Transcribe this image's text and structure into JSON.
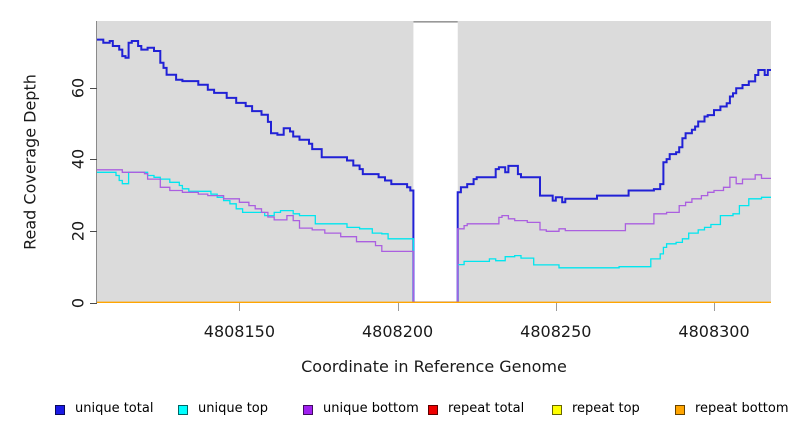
{
  "y_axis": {
    "label": "Read Coverage Depth",
    "ticks": [
      0,
      20,
      40,
      60
    ]
  },
  "x_axis": {
    "label": "Coordinate in Reference Genome",
    "ticks": [
      4808150,
      4808200,
      4808250,
      4808300
    ]
  },
  "legend": {
    "items": [
      {
        "label": "unique total",
        "color": "#1a1ae6"
      },
      {
        "label": "unique top",
        "color": "#00ffff"
      },
      {
        "label": "unique bottom",
        "color": "#a020f0"
      },
      {
        "label": "repeat total",
        "color": "#ee0000"
      },
      {
        "label": "repeat top",
        "color": "#ffff00"
      },
      {
        "label": "repeat bottom",
        "color": "#ffa500"
      }
    ]
  },
  "chart_data": {
    "type": "line",
    "subtype": "step-coverage",
    "xlabel": "Coordinate in Reference Genome",
    "ylabel": "Read Coverage Depth",
    "xlim": [
      4808105,
      4808318
    ],
    "ylim": [
      0,
      78.7
    ],
    "x_ticks": [
      4808150,
      4808200,
      4808250,
      4808300
    ],
    "y_ticks": [
      0,
      20,
      40,
      60
    ],
    "panel_background": "#dbdbdb",
    "gap": {
      "x_start": 4808205,
      "x_end": 4808219,
      "fill": "#ffffff",
      "top_border": "#999999"
    },
    "legend_position": "bottom",
    "grid": false,
    "series": [
      {
        "name": "unique total",
        "color": "#2121d6",
        "line_width": 2.0,
        "points": [
          [
            4808105,
            73.5
          ],
          [
            4808107,
            72.6
          ],
          [
            4808109,
            73.1
          ],
          [
            4808110,
            71.7
          ],
          [
            4808112,
            70.7
          ],
          [
            4808113,
            68.9
          ],
          [
            4808114,
            68.4
          ],
          [
            4808115,
            72.6
          ],
          [
            4808116,
            73.1
          ],
          [
            4808118,
            71.7
          ],
          [
            4808119,
            70.7
          ],
          [
            4808121,
            71.2
          ],
          [
            4808123,
            70.3
          ],
          [
            4808125,
            67.0
          ],
          [
            4808126,
            65.6
          ],
          [
            4808127,
            63.7
          ],
          [
            4808130,
            62.3
          ],
          [
            4808132,
            61.9
          ],
          [
            4808137,
            60.9
          ],
          [
            4808140,
            59.5
          ],
          [
            4808142,
            58.6
          ],
          [
            4808146,
            57.2
          ],
          [
            4808149,
            55.8
          ],
          [
            4808152,
            54.9
          ],
          [
            4808154,
            53.5
          ],
          [
            4808157,
            52.5
          ],
          [
            4808159,
            50.5
          ],
          [
            4808160,
            47.3
          ],
          [
            4808162,
            46.9
          ],
          [
            4808164,
            48.7
          ],
          [
            4808166,
            47.8
          ],
          [
            4808167,
            46.4
          ],
          [
            4808169,
            45.5
          ],
          [
            4808172,
            44.4
          ],
          [
            4808173,
            42.9
          ],
          [
            4808176,
            40.6
          ],
          [
            4808184,
            39.7
          ],
          [
            4808186,
            38.3
          ],
          [
            4808188,
            37.3
          ],
          [
            4808189,
            35.9
          ],
          [
            4808194,
            35.0
          ],
          [
            4808196,
            34.1
          ],
          [
            4808198,
            33.1
          ],
          [
            4808203,
            32.2
          ],
          [
            4808204,
            31.3
          ],
          [
            4808205,
            0
          ],
          [
            4808219,
            30.8
          ],
          [
            4808220,
            32.2
          ],
          [
            4808222,
            33.1
          ],
          [
            4808224,
            34.5
          ],
          [
            4808225,
            35.0
          ],
          [
            4808231,
            37.3
          ],
          [
            4808232,
            37.8
          ],
          [
            4808234,
            36.4
          ],
          [
            4808235,
            38.2
          ],
          [
            4808238,
            35.9
          ],
          [
            4808239,
            35.0
          ],
          [
            4808245,
            29.9
          ],
          [
            4808249,
            28.5
          ],
          [
            4808250,
            29.4
          ],
          [
            4808252,
            28.0
          ],
          [
            4808253,
            29.0
          ],
          [
            4808263,
            29.9
          ],
          [
            4808273,
            31.3
          ],
          [
            4808281,
            31.7
          ],
          [
            4808283,
            33.1
          ],
          [
            4808284,
            39.2
          ],
          [
            4808285,
            40.1
          ],
          [
            4808286,
            41.5
          ],
          [
            4808288,
            42.0
          ],
          [
            4808289,
            43.4
          ],
          [
            4808290,
            45.9
          ],
          [
            4808291,
            47.3
          ],
          [
            4808293,
            48.3
          ],
          [
            4808294,
            49.2
          ],
          [
            4808295,
            50.6
          ],
          [
            4808297,
            52.0
          ],
          [
            4808298,
            52.4
          ],
          [
            4808300,
            53.8
          ],
          [
            4808302,
            54.8
          ],
          [
            4808304,
            55.7
          ],
          [
            4808305,
            57.6
          ],
          [
            4808306,
            58.5
          ],
          [
            4808307,
            59.9
          ],
          [
            4808309,
            60.8
          ],
          [
            4808311,
            61.8
          ],
          [
            4808313,
            63.6
          ],
          [
            4808314,
            65.0
          ],
          [
            4808316,
            63.6
          ],
          [
            4808317,
            65.0
          ]
        ]
      },
      {
        "name": "unique top",
        "color": "#00e6ef",
        "line_width": 1.3,
        "points": [
          [
            4808105,
            36.4
          ],
          [
            4808111,
            35.5
          ],
          [
            4808112,
            34.1
          ],
          [
            4808113,
            33.2
          ],
          [
            4808115,
            36.4
          ],
          [
            4808121,
            35.5
          ],
          [
            4808123,
            35.0
          ],
          [
            4808125,
            34.5
          ],
          [
            4808128,
            33.6
          ],
          [
            4808131,
            32.7
          ],
          [
            4808132,
            31.8
          ],
          [
            4808134,
            31.1
          ],
          [
            4808141,
            30.3
          ],
          [
            4808143,
            29.4
          ],
          [
            4808145,
            28.5
          ],
          [
            4808147,
            27.6
          ],
          [
            4808149,
            26.2
          ],
          [
            4808151,
            25.2
          ],
          [
            4808158,
            24.3
          ],
          [
            4808161,
            25.2
          ],
          [
            4808163,
            25.7
          ],
          [
            4808167,
            24.8
          ],
          [
            4808169,
            24.3
          ],
          [
            4808174,
            22.0
          ],
          [
            4808184,
            21.0
          ],
          [
            4808188,
            20.6
          ],
          [
            4808192,
            19.4
          ],
          [
            4808195,
            19.2
          ],
          [
            4808197,
            17.8
          ],
          [
            4808205,
            0
          ],
          [
            4808219,
            10.6
          ],
          [
            4808221,
            11.5
          ],
          [
            4808229,
            12.2
          ],
          [
            4808231,
            11.7
          ],
          [
            4808234,
            12.8
          ],
          [
            4808237,
            13.1
          ],
          [
            4808239,
            12.4
          ],
          [
            4808243,
            10.5
          ],
          [
            4808251,
            9.7
          ],
          [
            4808270,
            10.0
          ],
          [
            4808280,
            12.2
          ],
          [
            4808283,
            13.6
          ],
          [
            4808284,
            15.4
          ],
          [
            4808285,
            16.4
          ],
          [
            4808288,
            16.8
          ],
          [
            4808290,
            17.8
          ],
          [
            4808292,
            19.4
          ],
          [
            4808295,
            20.3
          ],
          [
            4808297,
            21.0
          ],
          [
            4808299,
            21.8
          ],
          [
            4808302,
            24.3
          ],
          [
            4808306,
            24.8
          ],
          [
            4808308,
            27.1
          ],
          [
            4808311,
            29.0
          ],
          [
            4808315,
            29.4
          ]
        ]
      },
      {
        "name": "unique bottom",
        "color": "#ab5fe0",
        "line_width": 1.3,
        "points": [
          [
            4808105,
            37.1
          ],
          [
            4808113,
            36.4
          ],
          [
            4808120,
            36.0
          ],
          [
            4808121,
            34.5
          ],
          [
            4808125,
            32.2
          ],
          [
            4808128,
            31.3
          ],
          [
            4808132,
            30.8
          ],
          [
            4808137,
            30.3
          ],
          [
            4808140,
            29.9
          ],
          [
            4808145,
            29.0
          ],
          [
            4808150,
            28.0
          ],
          [
            4808153,
            27.1
          ],
          [
            4808155,
            26.2
          ],
          [
            4808157,
            25.2
          ],
          [
            4808159,
            23.9
          ],
          [
            4808161,
            23.1
          ],
          [
            4808165,
            24.3
          ],
          [
            4808167,
            22.9
          ],
          [
            4808169,
            20.8
          ],
          [
            4808173,
            20.3
          ],
          [
            4808177,
            19.4
          ],
          [
            4808182,
            18.4
          ],
          [
            4808187,
            17.0
          ],
          [
            4808193,
            15.9
          ],
          [
            4808195,
            14.3
          ],
          [
            4808205,
            0
          ],
          [
            4808219,
            20.6
          ],
          [
            4808221,
            21.5
          ],
          [
            4808222,
            22.0
          ],
          [
            4808232,
            23.8
          ],
          [
            4808233,
            24.3
          ],
          [
            4808235,
            23.4
          ],
          [
            4808237,
            22.9
          ],
          [
            4808241,
            22.4
          ],
          [
            4808245,
            20.3
          ],
          [
            4808247,
            19.9
          ],
          [
            4808251,
            20.6
          ],
          [
            4808253,
            20.1
          ],
          [
            4808272,
            22.0
          ],
          [
            4808281,
            24.8
          ],
          [
            4808285,
            25.2
          ],
          [
            4808289,
            27.1
          ],
          [
            4808291,
            28.0
          ],
          [
            4808293,
            29.0
          ],
          [
            4808296,
            29.9
          ],
          [
            4808298,
            30.8
          ],
          [
            4808300,
            31.3
          ],
          [
            4808303,
            32.2
          ],
          [
            4808305,
            35.0
          ],
          [
            4808307,
            33.2
          ],
          [
            4808309,
            34.5
          ],
          [
            4808313,
            35.7
          ],
          [
            4808315,
            34.7
          ]
        ]
      },
      {
        "name": "repeat total",
        "color": "#ee0000",
        "line_width": 1.3,
        "points": [
          [
            4808105,
            0
          ]
        ]
      },
      {
        "name": "repeat top",
        "color": "#ffff00",
        "line_width": 1.3,
        "points": [
          [
            4808105,
            0
          ]
        ]
      },
      {
        "name": "repeat bottom",
        "color": "#ffa500",
        "line_width": 1.5,
        "points": [
          [
            4808105,
            0
          ]
        ]
      }
    ]
  }
}
